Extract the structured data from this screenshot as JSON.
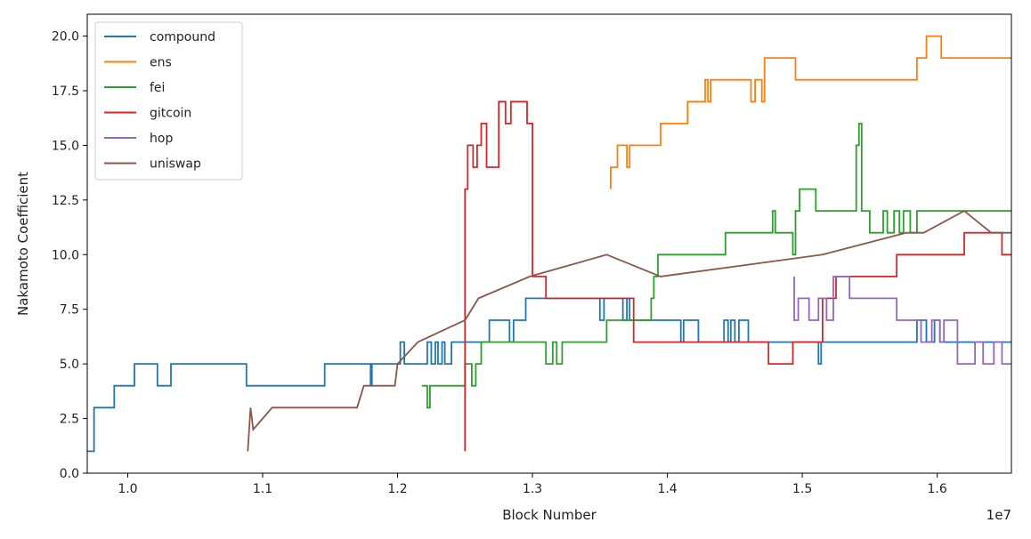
{
  "chart_data": {
    "type": "line",
    "xlabel": "Block Number",
    "ylabel": "Nakamoto Coefficient",
    "x_offset_label": "1e7",
    "xlim": [
      0.97,
      1.655
    ],
    "ylim": [
      0,
      21
    ],
    "x_ticks": [
      1.0,
      1.1,
      1.2,
      1.3,
      1.4,
      1.5,
      1.6
    ],
    "x_tick_labels": [
      "1.0",
      "1.1",
      "1.2",
      "1.3",
      "1.4",
      "1.5",
      "1.6"
    ],
    "y_ticks": [
      0,
      2.5,
      5,
      7.5,
      10,
      12.5,
      15,
      17.5,
      20
    ],
    "y_tick_labels": [
      "0.0",
      "2.5",
      "5.0",
      "7.5",
      "10.0",
      "12.5",
      "15.0",
      "17.5",
      "20.0"
    ],
    "grid": false,
    "legend_position": "top-left",
    "series": [
      {
        "name": "compound",
        "color": "#1f77b4",
        "x": [
          0.97,
          0.975,
          0.975,
          0.985,
          0.985,
          0.99,
          0.99,
          1.005,
          1.005,
          1.022,
          1.022,
          1.032,
          1.032,
          1.088,
          1.088,
          1.146,
          1.146,
          1.18,
          1.18,
          1.181,
          1.181,
          1.202,
          1.202,
          1.205,
          1.205,
          1.222,
          1.222,
          1.225,
          1.225,
          1.228,
          1.228,
          1.23,
          1.23,
          1.233,
          1.233,
          1.235,
          1.235,
          1.24,
          1.24,
          1.248,
          1.248,
          1.252,
          1.252,
          1.268,
          1.268,
          1.283,
          1.283,
          1.286,
          1.286,
          1.295,
          1.295,
          1.306,
          1.306,
          1.35,
          1.35,
          1.353,
          1.353,
          1.367,
          1.367,
          1.37,
          1.37,
          1.372,
          1.372,
          1.375,
          1.375,
          1.41,
          1.41,
          1.412,
          1.412,
          1.423,
          1.423,
          1.442,
          1.442,
          1.445,
          1.445,
          1.447,
          1.447,
          1.45,
          1.45,
          1.453,
          1.453,
          1.46,
          1.46,
          1.512,
          1.512,
          1.514,
          1.514,
          1.585,
          1.585,
          1.592,
          1.592,
          1.598,
          1.598,
          1.602,
          1.602,
          1.604,
          1.604,
          1.655
        ],
        "y": [
          1,
          1,
          3,
          3,
          3,
          3,
          4,
          4,
          5,
          5,
          4,
          4,
          5,
          5,
          4,
          4,
          5,
          5,
          4,
          4,
          5,
          5,
          6,
          6,
          5,
          5,
          6,
          6,
          5,
          5,
          6,
          6,
          5,
          5,
          6,
          6,
          5,
          5,
          6,
          6,
          6,
          6,
          6,
          6,
          7,
          7,
          6,
          6,
          7,
          7,
          8,
          8,
          8,
          8,
          7,
          7,
          8,
          8,
          7,
          7,
          8,
          8,
          7,
          7,
          7,
          7,
          6,
          6,
          7,
          7,
          6,
          6,
          7,
          7,
          6,
          6,
          7,
          7,
          6,
          6,
          7,
          7,
          6,
          6,
          5,
          5,
          6,
          6,
          7,
          7,
          6,
          6,
          7,
          7,
          6,
          6,
          6,
          6
        ]
      },
      {
        "name": "ens",
        "color": "#ff7f0e",
        "x": [
          1.358,
          1.358,
          1.36,
          1.36,
          1.363,
          1.363,
          1.37,
          1.37,
          1.372,
          1.372,
          1.374,
          1.374,
          1.395,
          1.395,
          1.415,
          1.415,
          1.428,
          1.428,
          1.43,
          1.43,
          1.432,
          1.432,
          1.462,
          1.462,
          1.465,
          1.465,
          1.47,
          1.47,
          1.472,
          1.472,
          1.475,
          1.475,
          1.495,
          1.495,
          1.585,
          1.585,
          1.592,
          1.592,
          1.603,
          1.603,
          1.655
        ],
        "y": [
          13,
          14,
          14,
          14,
          14,
          15,
          15,
          14,
          14,
          15,
          15,
          15,
          15,
          16,
          16,
          17,
          17,
          18,
          18,
          17,
          17,
          18,
          18,
          17,
          17,
          18,
          18,
          17,
          17,
          19,
          19,
          19,
          19,
          18,
          18,
          19,
          19,
          20,
          20,
          19,
          19
        ]
      },
      {
        "name": "fei",
        "color": "#2ca02c",
        "x": [
          1.218,
          1.222,
          1.222,
          1.224,
          1.224,
          1.232,
          1.232,
          1.25,
          1.25,
          1.255,
          1.255,
          1.258,
          1.258,
          1.262,
          1.262,
          1.275,
          1.275,
          1.31,
          1.31,
          1.315,
          1.315,
          1.318,
          1.318,
          1.322,
          1.322,
          1.355,
          1.355,
          1.388,
          1.388,
          1.39,
          1.39,
          1.393,
          1.393,
          1.398,
          1.398,
          1.443,
          1.443,
          1.478,
          1.478,
          1.48,
          1.48,
          1.493,
          1.493,
          1.495,
          1.495,
          1.498,
          1.498,
          1.51,
          1.51,
          1.54,
          1.54,
          1.542,
          1.542,
          1.544,
          1.544,
          1.546,
          1.546,
          1.55,
          1.55,
          1.56,
          1.56,
          1.563,
          1.563,
          1.568,
          1.568,
          1.572,
          1.572,
          1.575,
          1.575,
          1.58,
          1.58,
          1.585,
          1.585,
          1.655
        ],
        "y": [
          4,
          4,
          3,
          3,
          4,
          4,
          4,
          4,
          5,
          5,
          4,
          4,
          5,
          5,
          6,
          6,
          6,
          6,
          5,
          5,
          6,
          6,
          5,
          5,
          6,
          6,
          7,
          7,
          8,
          8,
          9,
          9,
          10,
          10,
          10,
          10,
          11,
          11,
          12,
          12,
          11,
          11,
          10,
          10,
          12,
          12,
          13,
          13,
          12,
          12,
          15,
          15,
          16,
          16,
          12,
          12,
          12,
          12,
          11,
          11,
          12,
          12,
          11,
          11,
          12,
          12,
          11,
          11,
          12,
          12,
          11,
          11,
          12,
          12
        ]
      },
      {
        "name": "gitcoin",
        "color": "#d62728",
        "x": [
          1.25,
          1.25,
          1.252,
          1.252,
          1.256,
          1.256,
          1.259,
          1.259,
          1.262,
          1.262,
          1.266,
          1.266,
          1.27,
          1.27,
          1.275,
          1.275,
          1.28,
          1.28,
          1.284,
          1.284,
          1.288,
          1.288,
          1.296,
          1.296,
          1.3,
          1.3,
          1.31,
          1.31,
          1.33,
          1.33,
          1.355,
          1.355,
          1.375,
          1.375,
          1.475,
          1.475,
          1.493,
          1.493,
          1.515,
          1.515,
          1.525,
          1.525,
          1.57,
          1.57,
          1.62,
          1.62,
          1.648,
          1.648,
          1.655
        ],
        "y": [
          1,
          13,
          13,
          15,
          15,
          14,
          14,
          15,
          15,
          16,
          16,
          14,
          14,
          14,
          14,
          17,
          17,
          16,
          16,
          17,
          17,
          17,
          17,
          16,
          16,
          9,
          9,
          8,
          8,
          8,
          8,
          8,
          8,
          6,
          6,
          5,
          5,
          6,
          6,
          8,
          8,
          9,
          9,
          10,
          10,
          11,
          11,
          10,
          10
        ]
      },
      {
        "name": "hop",
        "color": "#9467bd",
        "x": [
          1.494,
          1.494,
          1.497,
          1.497,
          1.5,
          1.5,
          1.505,
          1.505,
          1.512,
          1.512,
          1.518,
          1.518,
          1.523,
          1.523,
          1.528,
          1.528,
          1.535,
          1.535,
          1.55,
          1.55,
          1.57,
          1.57,
          1.588,
          1.588,
          1.596,
          1.596,
          1.602,
          1.602,
          1.605,
          1.605,
          1.615,
          1.615,
          1.628,
          1.628,
          1.634,
          1.634,
          1.642,
          1.642,
          1.648,
          1.648,
          1.655
        ],
        "y": [
          9,
          7,
          7,
          8,
          8,
          8,
          8,
          7,
          7,
          8,
          8,
          7,
          7,
          9,
          9,
          9,
          9,
          8,
          8,
          8,
          8,
          7,
          7,
          6,
          6,
          7,
          7,
          6,
          6,
          7,
          7,
          5,
          5,
          6,
          6,
          5,
          5,
          6,
          6,
          5,
          5
        ]
      },
      {
        "name": "uniswap",
        "color": "#8c564b",
        "x": [
          1.089,
          1.089,
          1.091,
          1.091,
          1.093,
          1.093,
          1.107,
          1.107,
          1.17,
          1.17,
          1.175,
          1.175,
          1.198,
          1.198,
          1.2,
          1.2,
          1.215,
          1.215,
          1.25,
          1.25,
          1.26,
          1.26,
          1.298,
          1.298,
          1.355,
          1.355,
          1.395,
          1.395,
          1.515,
          1.515,
          1.577,
          1.577,
          1.59,
          1.59,
          1.62,
          1.62,
          1.64,
          1.64,
          1.655
        ],
        "y": [
          1,
          1,
          3,
          3,
          2,
          2,
          3,
          3,
          3,
          3,
          4,
          4,
          4,
          4,
          5,
          5,
          6,
          6,
          7,
          7,
          8,
          8,
          9,
          9,
          10,
          10,
          9,
          9,
          10,
          10,
          11,
          11,
          11,
          11,
          12,
          12,
          11,
          11,
          11
        ]
      }
    ]
  }
}
